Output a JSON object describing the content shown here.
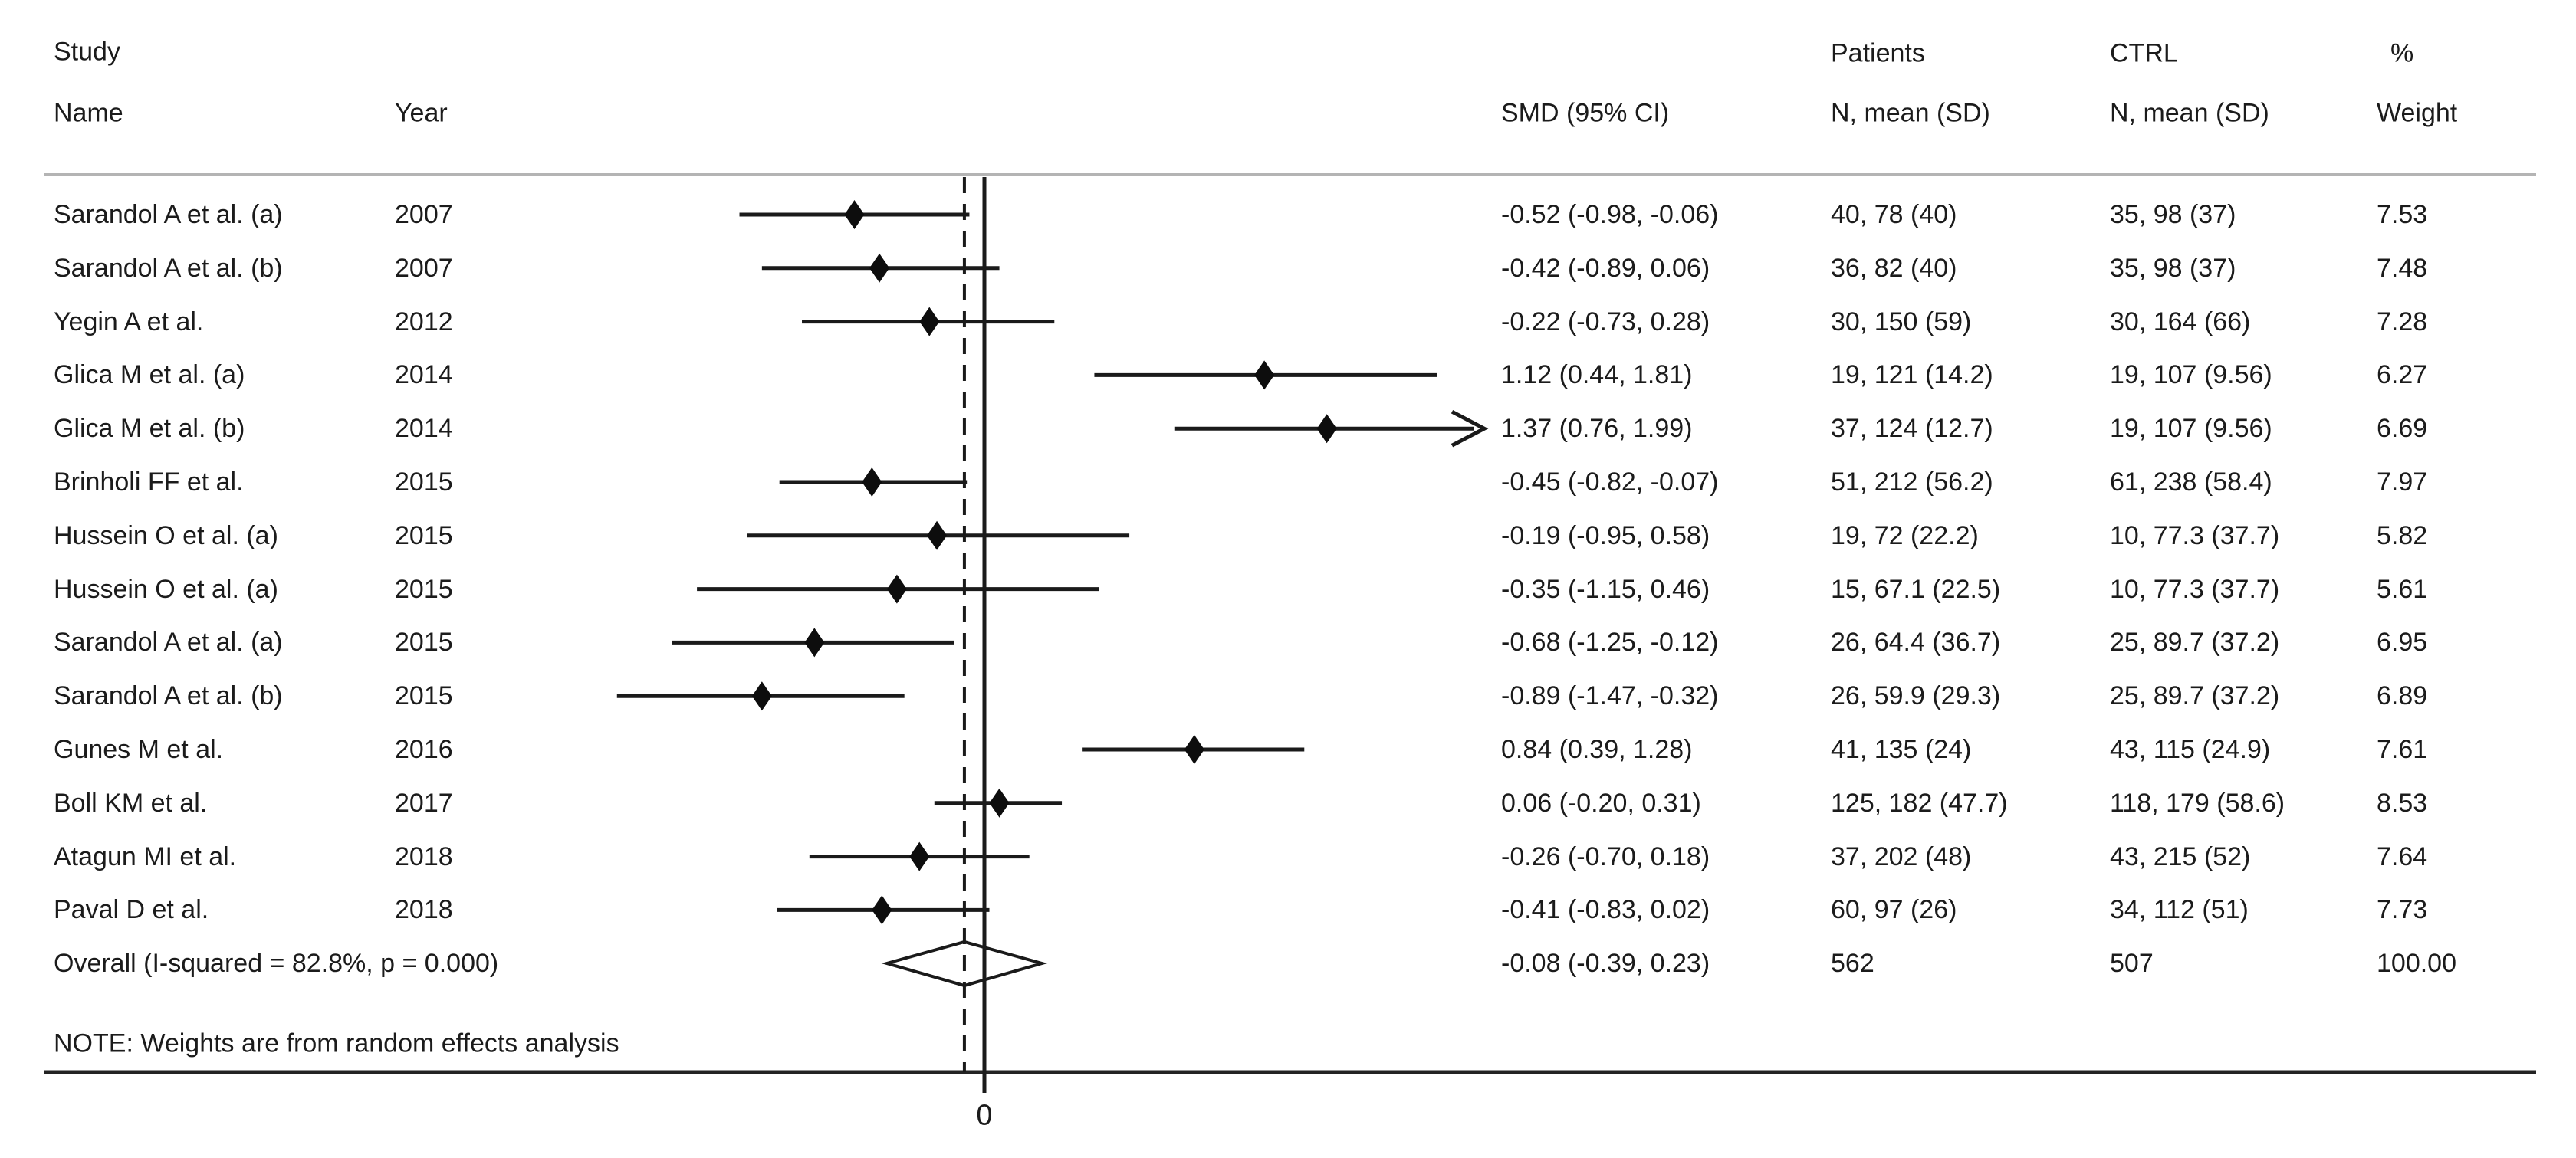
{
  "header": {
    "col_study_line1": "Study",
    "col_study_line2": "Name",
    "col_year": "Year",
    "col_smd": "SMD (95% CI)",
    "col_patients_line1": "Patients",
    "col_patients_line2": "N, mean (SD)",
    "col_ctrl_line1": "CTRL",
    "col_ctrl_line2": "N, mean (SD)",
    "col_weight_line1": "%",
    "col_weight_line2": "Weight"
  },
  "rows": [
    {
      "name": "Sarandol A et al. (a)",
      "year": "2007",
      "smd": "-0.52 (-0.98, -0.06)",
      "patients": "40, 78 (40)",
      "ctrl": "35, 98 (37)",
      "weight": "7.53"
    },
    {
      "name": "Sarandol A et al. (b)",
      "year": "2007",
      "smd": "-0.42 (-0.89, 0.06)",
      "patients": "36, 82 (40)",
      "ctrl": "35, 98 (37)",
      "weight": "7.48"
    },
    {
      "name": "Yegin A et al.",
      "year": "2012",
      "smd": "-0.22 (-0.73, 0.28)",
      "patients": "30, 150 (59)",
      "ctrl": "30, 164 (66)",
      "weight": "7.28"
    },
    {
      "name": "Glica M et al. (a)",
      "year": "2014",
      "smd": "1.12 (0.44, 1.81)",
      "patients": "19, 121 (14.2)",
      "ctrl": "19, 107 (9.56)",
      "weight": "6.27"
    },
    {
      "name": "Glica M et al. (b)",
      "year": "2014",
      "smd": "1.37 (0.76, 1.99)",
      "patients": "37, 124 (12.7)",
      "ctrl": "19, 107 (9.56)",
      "weight": "6.69"
    },
    {
      "name": "Brinholi FF et al.",
      "year": "2015",
      "smd": "-0.45 (-0.82, -0.07)",
      "patients": "51, 212 (56.2)",
      "ctrl": "61, 238 (58.4)",
      "weight": "7.97"
    },
    {
      "name": "Hussein O et al. (a)",
      "year": "2015",
      "smd": "-0.19 (-0.95, 0.58)",
      "patients": "19, 72 (22.2)",
      "ctrl": "10, 77.3 (37.7)",
      "weight": "5.82"
    },
    {
      "name": "Hussein O et al. (a)",
      "year": "2015",
      "smd": "-0.35 (-1.15, 0.46)",
      "patients": "15, 67.1 (22.5)",
      "ctrl": "10, 77.3 (37.7)",
      "weight": "5.61"
    },
    {
      "name": "Sarandol A et al. (a)",
      "year": "2015",
      "smd": "-0.68 (-1.25, -0.12)",
      "patients": "26, 64.4 (36.7)",
      "ctrl": "25, 89.7 (37.2)",
      "weight": "6.95"
    },
    {
      "name": "Sarandol A et al. (b)",
      "year": "2015",
      "smd": "-0.89 (-1.47, -0.32)",
      "patients": "26, 59.9 (29.3)",
      "ctrl": "25, 89.7 (37.2)",
      "weight": "6.89"
    },
    {
      "name": "Gunes M et al.",
      "year": "2016",
      "smd": "0.84 (0.39, 1.28)",
      "patients": "41, 135 (24)",
      "ctrl": "43, 115 (24.9)",
      "weight": "7.61"
    },
    {
      "name": "Boll KM et al.",
      "year": "2017",
      "smd": "0.06 (-0.20, 0.31)",
      "patients": "125, 182 (47.7)",
      "ctrl": "118, 179 (58.6)",
      "weight": "8.53"
    },
    {
      "name": "Atagun MI et al.",
      "year": "2018",
      "smd": "-0.26 (-0.70, 0.18)",
      "patients": "37, 202 (48)",
      "ctrl": "43, 215 (52)",
      "weight": "7.64"
    },
    {
      "name": "Paval D et al.",
      "year": "2018",
      "smd": "-0.41 (-0.83, 0.02)",
      "patients": "60, 97 (26)",
      "ctrl": "34, 112 (51)",
      "weight": "7.73"
    }
  ],
  "overall": {
    "label": "Overall  (I-squared = 82.8%, p = 0.000)",
    "smd": "-0.08 (-0.39, 0.23)",
    "patients": "562",
    "ctrl": "507",
    "weight": "100.00"
  },
  "note": "NOTE: Weights are from random effects analysis",
  "axis": {
    "zero_label": "0"
  },
  "colors": {
    "text": "#1b1b1b",
    "line": "#1a1a1a",
    "top_rule": "#b4b4b4",
    "bottom_rule": "#232323",
    "marker_fill": "#0d0d0d",
    "background": "#ffffff"
  },
  "chart_data": {
    "type": "scatter",
    "subtype": "forest-plot",
    "title": "",
    "xlabel": "",
    "x_axis": {
      "ticks": [
        0
      ],
      "zero_line": 0,
      "dashed_line_at": -0.08,
      "display_range": [
        -1.9,
        1.9
      ]
    },
    "studies": [
      {
        "name": "Sarandol A et al. (a)",
        "year": 2007,
        "smd": -0.52,
        "ci": [
          -0.98,
          -0.06
        ],
        "weight": 7.53,
        "ci_clipped_right": false
      },
      {
        "name": "Sarandol A et al. (b)",
        "year": 2007,
        "smd": -0.42,
        "ci": [
          -0.89,
          0.06
        ],
        "weight": 7.48,
        "ci_clipped_right": false
      },
      {
        "name": "Yegin A et al.",
        "year": 2012,
        "smd": -0.22,
        "ci": [
          -0.73,
          0.28
        ],
        "weight": 7.28,
        "ci_clipped_right": false
      },
      {
        "name": "Glica M et al. (a)",
        "year": 2014,
        "smd": 1.12,
        "ci": [
          0.44,
          1.81
        ],
        "weight": 6.27,
        "ci_clipped_right": false
      },
      {
        "name": "Glica M et al. (b)",
        "year": 2014,
        "smd": 1.37,
        "ci": [
          0.76,
          1.99
        ],
        "weight": 6.69,
        "ci_clipped_right": true
      },
      {
        "name": "Brinholi FF et al.",
        "year": 2015,
        "smd": -0.45,
        "ci": [
          -0.82,
          -0.07
        ],
        "weight": 7.97,
        "ci_clipped_right": false
      },
      {
        "name": "Hussein O et al. (a)",
        "year": 2015,
        "smd": -0.19,
        "ci": [
          -0.95,
          0.58
        ],
        "weight": 5.82,
        "ci_clipped_right": false
      },
      {
        "name": "Hussein O et al. (a)",
        "year": 2015,
        "smd": -0.35,
        "ci": [
          -1.15,
          0.46
        ],
        "weight": 5.61,
        "ci_clipped_right": false
      },
      {
        "name": "Sarandol A et al. (a)",
        "year": 2015,
        "smd": -0.68,
        "ci": [
          -1.25,
          -0.12
        ],
        "weight": 6.95,
        "ci_clipped_right": false
      },
      {
        "name": "Sarandol A et al. (b)",
        "year": 2015,
        "smd": -0.89,
        "ci": [
          -1.47,
          -0.32
        ],
        "weight": 6.89,
        "ci_clipped_right": false
      },
      {
        "name": "Gunes M et al.",
        "year": 2016,
        "smd": 0.84,
        "ci": [
          0.39,
          1.28
        ],
        "weight": 7.61,
        "ci_clipped_right": false
      },
      {
        "name": "Boll KM et al.",
        "year": 2017,
        "smd": 0.06,
        "ci": [
          -0.2,
          0.31
        ],
        "weight": 8.53,
        "ci_clipped_right": false
      },
      {
        "name": "Atagun MI et al.",
        "year": 2018,
        "smd": -0.26,
        "ci": [
          -0.7,
          0.18
        ],
        "weight": 7.64,
        "ci_clipped_right": false
      },
      {
        "name": "Paval D et al.",
        "year": 2018,
        "smd": -0.41,
        "ci": [
          -0.83,
          0.02
        ],
        "weight": 7.73,
        "ci_clipped_right": false
      }
    ],
    "overall": {
      "smd": -0.08,
      "ci": [
        -0.39,
        0.23
      ],
      "i_squared_pct": 82.8,
      "p_value": "0.000",
      "patients_n": 562,
      "ctrl_n": 507,
      "weight": 100.0
    },
    "legend": "none",
    "grid": false
  }
}
